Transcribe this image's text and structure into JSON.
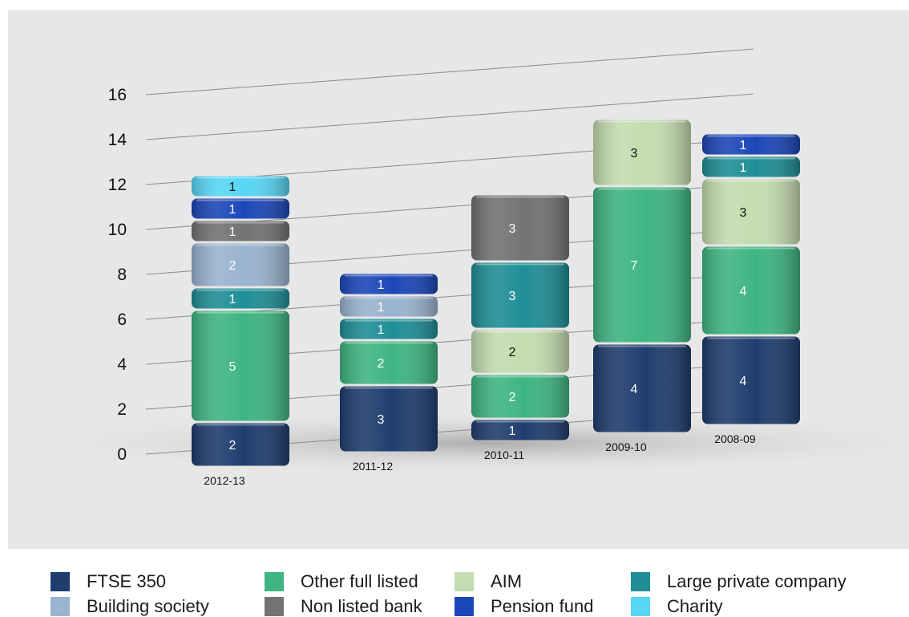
{
  "chart_data": {
    "type": "bar",
    "stacked": true,
    "title": "",
    "xlabel": "",
    "ylabel": "",
    "ylim": [
      0,
      16
    ],
    "yticks": [
      0,
      2,
      4,
      6,
      8,
      10,
      12,
      14,
      16
    ],
    "grid": true,
    "legend_position": "bottom",
    "categories": [
      "2012-13",
      "2011-12",
      "2010-11",
      "2009-10",
      "2008-09"
    ],
    "series": [
      {
        "name": "FTSE 350",
        "color": "#1f3d6e",
        "label_color": "#ffffff",
        "values": [
          2,
          3,
          1,
          4,
          4
        ]
      },
      {
        "name": "Other full listed",
        "color": "#3fb582",
        "label_color": "#ffffff",
        "values": [
          5,
          2,
          2,
          7,
          4
        ]
      },
      {
        "name": "AIM",
        "color": "#c4dcb0",
        "label_color": "#111111",
        "values": [
          0,
          0,
          2,
          3,
          3
        ]
      },
      {
        "name": "Large private company",
        "color": "#1f8e96",
        "label_color": "#ffffff",
        "values": [
          1,
          1,
          3,
          0,
          1
        ]
      },
      {
        "name": "Building society",
        "color": "#9ab3cf",
        "label_color": "#ffffff",
        "values": [
          2,
          1,
          0,
          0,
          0
        ]
      },
      {
        "name": "Non listed bank",
        "color": "#737373",
        "label_color": "#ffffff",
        "values": [
          1,
          0,
          3,
          0,
          0
        ]
      },
      {
        "name": "Pension fund",
        "color": "#1c47b8",
        "label_color": "#ffffff",
        "values": [
          1,
          1,
          0,
          0,
          1
        ]
      },
      {
        "name": "Charity",
        "color": "#58d6f5",
        "label_color": "#111111",
        "values": [
          1,
          0,
          0,
          0,
          0
        ]
      }
    ]
  }
}
